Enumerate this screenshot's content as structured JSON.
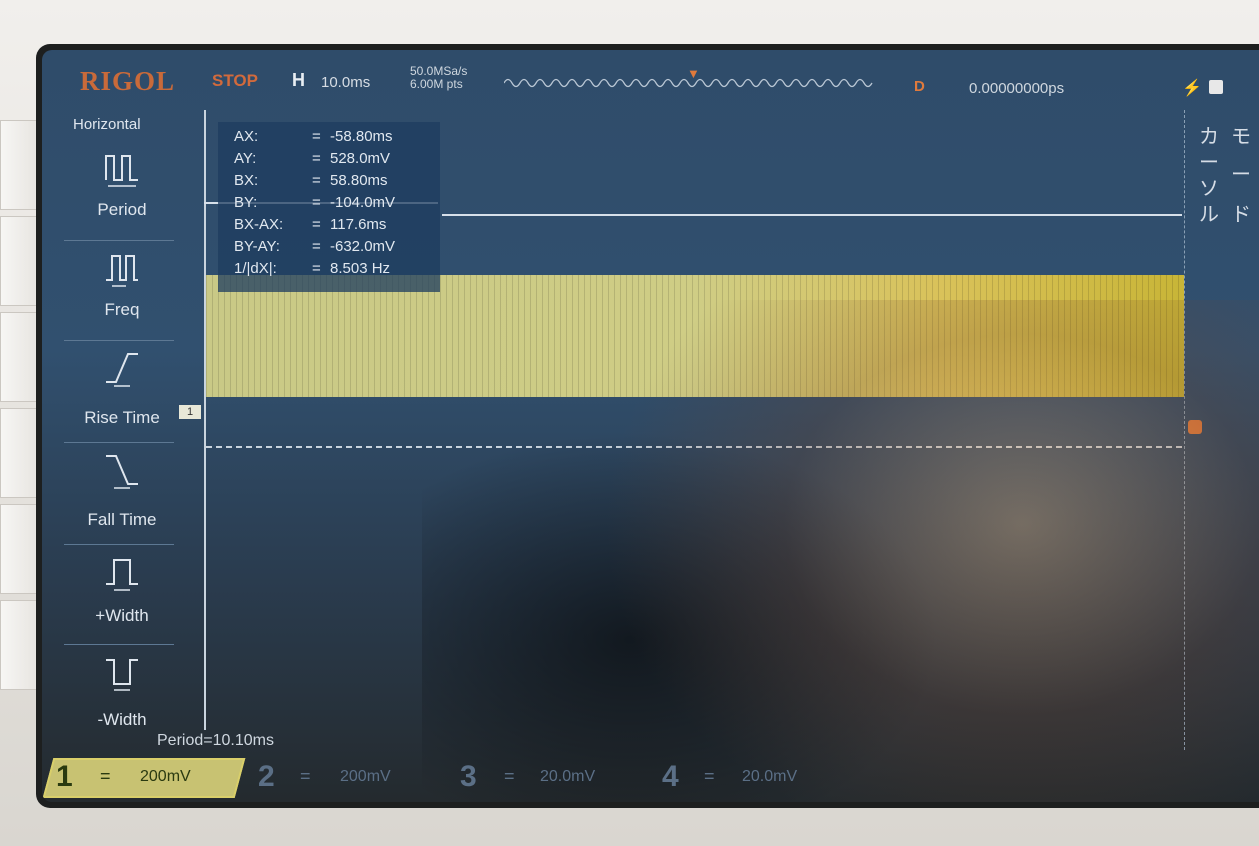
{
  "top_bar": {
    "brand": "RIGOL",
    "run_state": "STOP",
    "timebase_label": "H",
    "timebase_value": "10.0ms",
    "sample_rate": "50.0MSa/s",
    "memory_depth": "6.00M pts",
    "delay_label": "D",
    "delay_value": "0.00000000ps"
  },
  "left_menu": {
    "title": "Horizontal",
    "items": [
      {
        "label": "Period",
        "icon": "period-icon"
      },
      {
        "label": "Freq",
        "icon": "freq-icon"
      },
      {
        "label": "Rise Time",
        "icon": "rise-time-icon"
      },
      {
        "label": "Fall Time",
        "icon": "fall-time-icon"
      },
      {
        "label": "+Width",
        "icon": "positive-width-icon"
      },
      {
        "label": "-Width",
        "icon": "negative-width-icon"
      }
    ]
  },
  "cursor_readout": {
    "rows": [
      {
        "label": "AX:",
        "value": "-58.80ms"
      },
      {
        "label": "AY:",
        "value": "528.0mV"
      },
      {
        "label": "BX:",
        "value": "58.80ms"
      },
      {
        "label": "BY:",
        "value": "-104.0mV"
      },
      {
        "label": "BX-AX:",
        "value": "117.6ms"
      },
      {
        "label": "BY-AY:",
        "value": "-632.0mV"
      },
      {
        "label": "1/|dX|:",
        "value": "8.503 Hz"
      }
    ],
    "eq_sign": "="
  },
  "channel_marker": "1",
  "measurement": {
    "period_text": "Period=10.10ms"
  },
  "right_menu": {
    "glyphs": [
      "カ",
      "ー",
      "ソ",
      "ル",
      "モ",
      "ー",
      "ド"
    ]
  },
  "channels": [
    {
      "num": "1",
      "scale": "200mV",
      "color": "#d9cf6a"
    },
    {
      "num": "2",
      "scale": "200mV",
      "color": "#5b6f86"
    },
    {
      "num": "3",
      "scale": "20.0mV",
      "color": "#5b6f86"
    },
    {
      "num": "4",
      "scale": "20.0mV",
      "color": "#5b6f86"
    }
  ],
  "colors": {
    "ch1": "#d9cf6a",
    "brand": "#c96a3a",
    "stop": "#d26a3c"
  }
}
